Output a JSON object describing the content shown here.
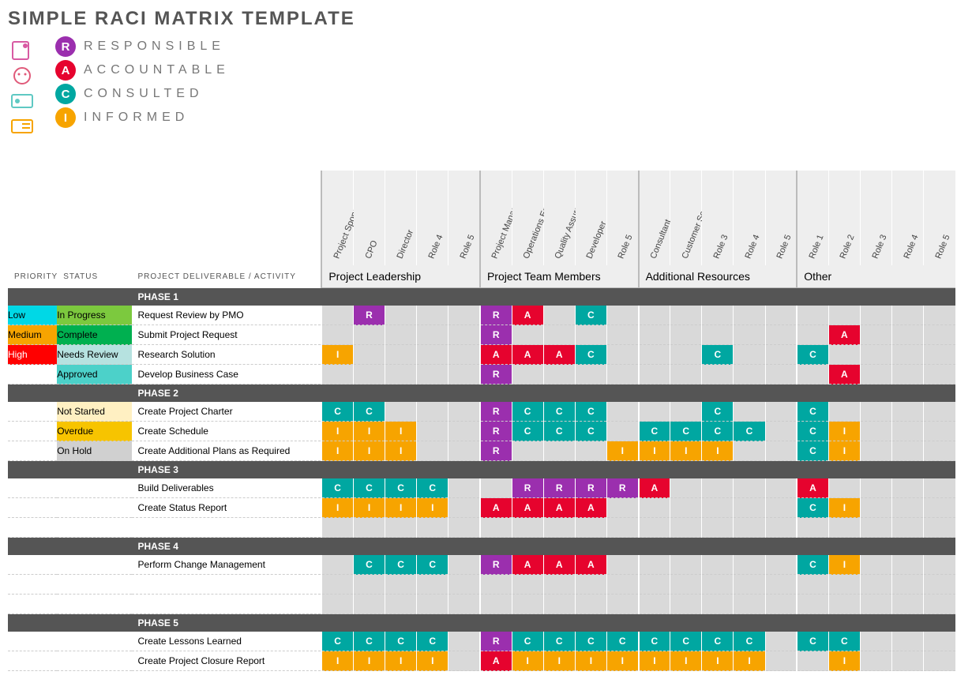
{
  "title": "SIMPLE RACI MATRIX TEMPLATE",
  "legend": [
    {
      "code": "R",
      "label": "RESPONSIBLE",
      "color": "#9b2fae"
    },
    {
      "code": "A",
      "label": "ACCOUNTABLE",
      "color": "#e6032e"
    },
    {
      "code": "C",
      "label": "CONSULTED",
      "color": "#00a7a1"
    },
    {
      "code": "I",
      "label": "INFORMED",
      "color": "#f7a400"
    }
  ],
  "raci_colors": {
    "R": "#9b2fae",
    "A": "#e6032e",
    "C": "#00a7a1",
    "I": "#f7a400"
  },
  "priority_colors": {
    "Low": "#00d8e6",
    "Medium": "#f7a400",
    "High": "#ff0000"
  },
  "status_colors": {
    "In Progress": "#7cc93e",
    "Complete": "#00b050",
    "Needs Review": "#b6e2e0",
    "Approved": "#4cd1c9",
    "Not Started": "#fff0c2",
    "Overdue": "#f7c400",
    "On Hold": "#d0d0d0"
  },
  "column_headers": {
    "priority": "PRIORITY",
    "status": "STATUS",
    "activity": "PROJECT DELIVERABLE / ACTIVITY"
  },
  "groups": [
    {
      "name": "Project Leadership",
      "roles": [
        "Project Sponsor",
        "CPO",
        "Director",
        "Role 4",
        "Role 5"
      ]
    },
    {
      "name": "Project Team Members",
      "roles": [
        "Project Manager",
        "Operations Engineer",
        "Quality Assurance",
        "Developer",
        "Role 5"
      ]
    },
    {
      "name": "Additional Resources",
      "roles": [
        "Consultant",
        "Customer Service",
        "Role 3",
        "Role 4",
        "Role 5"
      ]
    },
    {
      "name": "Other",
      "roles": [
        "Role 1",
        "Role 2",
        "Role 3",
        "Role 4",
        "Role 5"
      ]
    }
  ],
  "phases": [
    {
      "name": "PHASE 1",
      "rows": [
        {
          "priority": "Low",
          "status": "In Progress",
          "activity": "Request Review by PMO",
          "cells": [
            "",
            "R",
            "",
            "",
            "",
            "R",
            "A",
            "",
            "C",
            "",
            "",
            "",
            "",
            "",
            "",
            "",
            "",
            "",
            "",
            ""
          ]
        },
        {
          "priority": "Medium",
          "status": "Complete",
          "activity": "Submit Project Request",
          "cells": [
            "",
            "",
            "",
            "",
            "",
            "R",
            "",
            "",
            "",
            "",
            "",
            "",
            "",
            "",
            "",
            "",
            "A",
            "",
            "",
            ""
          ]
        },
        {
          "priority": "High",
          "status": "Needs Review",
          "activity": "Research Solution",
          "cells": [
            "I",
            "",
            "",
            "",
            "",
            "A",
            "A",
            "A",
            "C",
            "",
            "",
            "",
            "C",
            "",
            "",
            "C",
            "",
            "",
            "",
            ""
          ]
        },
        {
          "priority": "",
          "status": "Approved",
          "activity": "Develop Business Case",
          "cells": [
            "",
            "",
            "",
            "",
            "",
            "R",
            "",
            "",
            "",
            "",
            "",
            "",
            "",
            "",
            "",
            "",
            "A",
            "",
            "",
            ""
          ]
        }
      ]
    },
    {
      "name": "PHASE 2",
      "rows": [
        {
          "priority": "",
          "status": "Not Started",
          "activity": "Create Project Charter",
          "cells": [
            "C",
            "C",
            "",
            "",
            "",
            "R",
            "C",
            "C",
            "C",
            "",
            "",
            "",
            "C",
            "",
            "",
            "C",
            "",
            "",
            "",
            ""
          ]
        },
        {
          "priority": "",
          "status": "Overdue",
          "activity": "Create Schedule",
          "cells": [
            "I",
            "I",
            "I",
            "",
            "",
            "R",
            "C",
            "C",
            "C",
            "",
            "C",
            "C",
            "C",
            "C",
            "",
            "C",
            "I",
            "",
            "",
            ""
          ]
        },
        {
          "priority": "",
          "status": "On Hold",
          "activity": "Create Additional Plans as Required",
          "cells": [
            "I",
            "I",
            "I",
            "",
            "",
            "R",
            "",
            "",
            "",
            "I",
            "I",
            "I",
            "I",
            "",
            "",
            "C",
            "I",
            "",
            "",
            ""
          ]
        }
      ]
    },
    {
      "name": "PHASE 3",
      "rows": [
        {
          "priority": "",
          "status": "",
          "activity": "Build Deliverables",
          "cells": [
            "C",
            "C",
            "C",
            "C",
            "",
            "",
            "R",
            "R",
            "R",
            "R",
            "A",
            "",
            "",
            "",
            "",
            "A",
            "",
            "",
            "",
            ""
          ]
        },
        {
          "priority": "",
          "status": "",
          "activity": "Create Status Report",
          "cells": [
            "I",
            "I",
            "I",
            "I",
            "",
            "A",
            "A",
            "A",
            "A",
            "",
            "",
            "",
            "",
            "",
            "",
            "C",
            "I",
            "",
            "",
            ""
          ]
        },
        {
          "priority": "",
          "status": "",
          "activity": "",
          "cells": [
            "",
            "",
            "",
            "",
            "",
            "",
            "",
            "",
            "",
            "",
            "",
            "",
            "",
            "",
            "",
            "",
            "",
            "",
            "",
            ""
          ]
        }
      ]
    },
    {
      "name": "PHASE 4",
      "rows": [
        {
          "priority": "",
          "status": "",
          "activity": "Perform Change Management",
          "cells": [
            "",
            "C",
            "C",
            "C",
            "",
            "R",
            "A",
            "A",
            "A",
            "",
            "",
            "",
            "",
            "",
            "",
            "C",
            "I",
            "",
            "",
            ""
          ]
        },
        {
          "priority": "",
          "status": "",
          "activity": "",
          "cells": [
            "",
            "",
            "",
            "",
            "",
            "",
            "",
            "",
            "",
            "",
            "",
            "",
            "",
            "",
            "",
            "",
            "",
            "",
            "",
            ""
          ]
        },
        {
          "priority": "",
          "status": "",
          "activity": "",
          "cells": [
            "",
            "",
            "",
            "",
            "",
            "",
            "",
            "",
            "",
            "",
            "",
            "",
            "",
            "",
            "",
            "",
            "",
            "",
            "",
            ""
          ]
        }
      ]
    },
    {
      "name": "PHASE 5",
      "rows": [
        {
          "priority": "",
          "status": "",
          "activity": "Create Lessons Learned",
          "cells": [
            "C",
            "C",
            "C",
            "C",
            "",
            "R",
            "C",
            "C",
            "C",
            "C",
            "C",
            "C",
            "C",
            "C",
            "",
            "C",
            "C",
            "",
            "",
            ""
          ]
        },
        {
          "priority": "",
          "status": "",
          "activity": "Create Project Closure Report",
          "cells": [
            "I",
            "I",
            "I",
            "I",
            "",
            "A",
            "I",
            "I",
            "I",
            "I",
            "I",
            "I",
            "I",
            "I",
            "",
            "",
            "I",
            "",
            "",
            ""
          ]
        }
      ]
    }
  ]
}
